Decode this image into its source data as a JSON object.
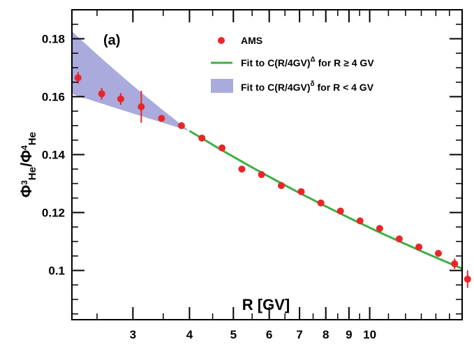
{
  "chart_data": {
    "type": "scatter",
    "panel_label": "(a)",
    "xlabel": "R [GV]",
    "ylabel": {
      "main": "Φ",
      "sub1": "3",
      "sub1b": "He",
      "sep": "/Φ",
      "sub2": "4",
      "sub2b": "He"
    },
    "x_scale": "log",
    "xlim": [
      2.2,
      16
    ],
    "ylim": [
      0.083,
      0.19
    ],
    "x_ticks": [
      {
        "value": 3,
        "label": "3"
      },
      {
        "value": 4,
        "label": "4"
      },
      {
        "value": 5,
        "label": "5"
      },
      {
        "value": 6,
        "label": "6"
      },
      {
        "value": 7,
        "label": "7"
      },
      {
        "value": 8,
        "label": "8"
      },
      {
        "value": 9,
        "label": "9"
      },
      {
        "value": 10,
        "label": "10"
      }
    ],
    "y_ticks": [
      {
        "value": 0.1,
        "label": "0.1"
      },
      {
        "value": 0.12,
        "label": "0.12"
      },
      {
        "value": 0.14,
        "label": "0.14"
      },
      {
        "value": 0.16,
        "label": "0.16"
      },
      {
        "value": 0.18,
        "label": "0.18"
      }
    ],
    "legend": {
      "position": "top-right",
      "entries": [
        {
          "type": "marker",
          "label": "AMS"
        },
        {
          "type": "line",
          "label_pre": "Fit to C(R/4GV)",
          "label_sup": "Δ",
          "label_post": " for R ≥ 4 GV"
        },
        {
          "type": "band",
          "label_pre": "Fit to C(R/4GV)",
          "label_sup": "δ",
          "label_post": " for R < 4 GV"
        }
      ]
    },
    "series": [
      {
        "name": "AMS",
        "color": "#e8262a",
        "points": [
          {
            "x": 2.27,
            "y": 0.1665,
            "err": 0.002
          },
          {
            "x": 2.56,
            "y": 0.161,
            "err": 0.002
          },
          {
            "x": 2.82,
            "y": 0.1592,
            "err": 0.002
          },
          {
            "x": 3.13,
            "y": 0.1565,
            "err": 0.0055
          },
          {
            "x": 3.47,
            "y": 0.1525,
            "err": 0.0008
          },
          {
            "x": 3.84,
            "y": 0.15,
            "err": 0.0008
          },
          {
            "x": 4.26,
            "y": 0.1457,
            "err": 0.0008
          },
          {
            "x": 4.72,
            "y": 0.1423,
            "err": 0.0008
          },
          {
            "x": 5.22,
            "y": 0.135,
            "err": 0.0008
          },
          {
            "x": 5.77,
            "y": 0.1331,
            "err": 0.0008
          },
          {
            "x": 6.38,
            "y": 0.1293,
            "err": 0.0008
          },
          {
            "x": 7.06,
            "y": 0.1272,
            "err": 0.0008
          },
          {
            "x": 7.8,
            "y": 0.1233,
            "err": 0.0008
          },
          {
            "x": 8.62,
            "y": 0.1205,
            "err": 0.0008
          },
          {
            "x": 9.52,
            "y": 0.1171,
            "err": 0.0008
          },
          {
            "x": 10.52,
            "y": 0.1145,
            "err": 0.0008
          },
          {
            "x": 11.62,
            "y": 0.1109,
            "err": 0.0008
          },
          {
            "x": 12.84,
            "y": 0.1081,
            "err": 0.0008
          },
          {
            "x": 14.18,
            "y": 0.1059,
            "err": 0.0008
          },
          {
            "x": 15.4,
            "y": 0.1023,
            "err": 0.0018
          },
          {
            "x": 16.45,
            "y": 0.097,
            "err": 0.003
          }
        ]
      }
    ],
    "fit_line": {
      "color": "#3cb043",
      "x_start": 4.0,
      "x_end": 16.6,
      "y_at_4": 0.1482,
      "exponent": -0.279
    },
    "fit_band": {
      "color": "#8e8ed0",
      "x_start": 2.15,
      "x_end": 4.0,
      "y_at_4": 0.1482,
      "exponent_upper": -0.349,
      "exponent_lower": -0.138
    }
  }
}
